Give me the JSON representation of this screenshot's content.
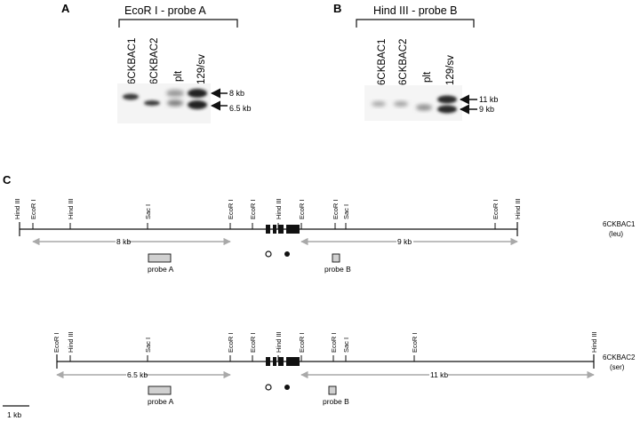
{
  "figure": {
    "panels": [
      {
        "letter": "A",
        "title": "EcoR I - probe A",
        "lanes": [
          "6CKBAC1",
          "6CKBAC2",
          "plt",
          "129/sv"
        ],
        "size_markers": [
          "8 kb",
          "6.5 kb"
        ]
      },
      {
        "letter": "B",
        "title": "Hind III - probe B",
        "lanes": [
          "6CKBAC1",
          "6CKBAC2",
          "plt",
          "129/sv"
        ],
        "size_markers": [
          "11 kb",
          "9 kb"
        ]
      }
    ],
    "map_panel_letter": "C",
    "maps": [
      {
        "clone": "6CKBAC1",
        "allele": "(leu)",
        "sites": [
          "Hind III",
          "EcoR I",
          "Hind III",
          "Sac I",
          "EcoR I",
          "EcoR I",
          "Hind III",
          "EcoR I",
          "EcoR I",
          "Sac I",
          "EcoR I",
          "Hind III"
        ],
        "distances": [
          "8 kb",
          "9 kb"
        ],
        "probes": [
          "probe A",
          "probe B"
        ]
      },
      {
        "clone": "6CKBAC2",
        "allele": "(ser)",
        "sites": [
          "EcoR I",
          "Hind III",
          "Sac I",
          "EcoR I",
          "EcoR I",
          "Hind III",
          "EcoR I",
          "EcoR I",
          "Sac I",
          "EcoR I",
          "Hind III"
        ],
        "distances": [
          "6.5 kb",
          "11 kb"
        ],
        "probes": [
          "probe A",
          "probe B"
        ]
      }
    ],
    "scale_bar": "1 kb"
  }
}
